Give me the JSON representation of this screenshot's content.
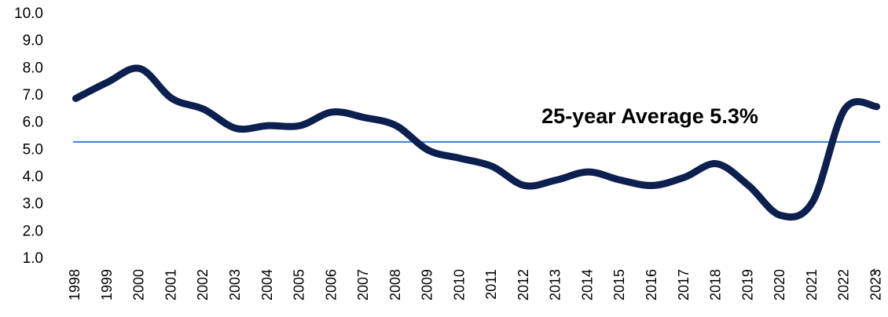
{
  "chart_data": {
    "type": "line",
    "categories": [
      "1998",
      "1999",
      "2000",
      "2001",
      "2002",
      "2003",
      "2004",
      "2005",
      "2006",
      "2007",
      "2008",
      "2009",
      "2010",
      "2011",
      "2012",
      "2013",
      "2014",
      "2015",
      "2016",
      "2017",
      "2018",
      "2019",
      "2020",
      "2021",
      "2022",
      "2023"
    ],
    "footnote_mark": "1",
    "series": [
      {
        "color": "#0d1f4f",
        "values": [
          6.9,
          7.5,
          8.0,
          6.9,
          6.5,
          5.8,
          5.9,
          5.9,
          6.4,
          6.2,
          5.9,
          5.0,
          4.7,
          4.4,
          3.7,
          3.9,
          4.2,
          3.9,
          3.7,
          4.0,
          4.5,
          3.7,
          2.6,
          3.1,
          6.5,
          6.6
        ]
      }
    ],
    "reference_line": {
      "value": 5.3,
      "label": "25-year Average 5.3%",
      "color": "#3a7fd5"
    },
    "ylim": [
      1,
      10
    ],
    "yticks": [
      {
        "value": 1,
        "label": "1.0"
      },
      {
        "value": 2,
        "label": "2.0"
      },
      {
        "value": 3,
        "label": "3.0"
      },
      {
        "value": 4,
        "label": "4.0"
      },
      {
        "value": 5,
        "label": "5.0"
      },
      {
        "value": 6,
        "label": "6.0"
      },
      {
        "value": 7,
        "label": "7.0"
      },
      {
        "value": 8,
        "label": "8.0"
      },
      {
        "value": 9,
        "label": "9.0"
      },
      {
        "value": 10,
        "label": "10.0"
      }
    ]
  }
}
